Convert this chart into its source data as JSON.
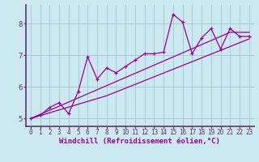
{
  "xlabel": "Windchill (Refroidissement éolien,°C)",
  "bg_color": "#cce8f0",
  "line_color": "#990099",
  "spine_color": "#663366",
  "x_data": [
    0,
    1,
    2,
    3,
    4,
    5,
    6,
    7,
    8,
    9,
    10,
    11,
    12,
    13,
    14,
    15,
    16,
    17,
    18,
    19,
    20,
    21,
    22,
    23
  ],
  "y_main": [
    5.0,
    5.1,
    5.35,
    5.5,
    5.15,
    5.85,
    6.95,
    6.25,
    6.6,
    6.45,
    6.65,
    6.85,
    7.05,
    7.05,
    7.1,
    8.3,
    8.05,
    7.05,
    7.55,
    7.85,
    7.2,
    7.85,
    7.6,
    7.6
  ],
  "y_trend1": [
    5.0,
    5.13,
    5.26,
    5.39,
    5.52,
    5.65,
    5.78,
    5.91,
    6.04,
    6.17,
    6.3,
    6.43,
    6.56,
    6.69,
    6.82,
    6.95,
    7.08,
    7.21,
    7.34,
    7.47,
    7.6,
    7.73,
    7.73,
    7.73
  ],
  "y_trend2": [
    5.0,
    5.09,
    5.18,
    5.27,
    5.36,
    5.45,
    5.54,
    5.63,
    5.72,
    5.84,
    5.96,
    6.08,
    6.2,
    6.32,
    6.44,
    6.56,
    6.68,
    6.8,
    6.92,
    7.04,
    7.16,
    7.28,
    7.4,
    7.52
  ],
  "ylim": [
    4.75,
    8.6
  ],
  "yticks": [
    5,
    6,
    7,
    8
  ],
  "xlim": [
    -0.5,
    23.5
  ],
  "xticks": [
    0,
    1,
    2,
    3,
    4,
    5,
    6,
    7,
    8,
    9,
    10,
    11,
    12,
    13,
    14,
    15,
    16,
    17,
    18,
    19,
    20,
    21,
    22,
    23
  ],
  "grid_color": "#9bbfcc",
  "xlabel_color": "#990099",
  "tick_color": "#663366"
}
